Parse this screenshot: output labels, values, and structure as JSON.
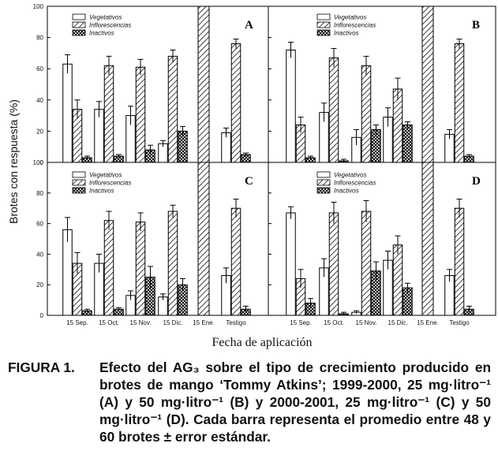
{
  "figure": {
    "ylabel": "Brotes con respuesta (%)",
    "xlabel": "Fecha de aplicación",
    "caption_label": "FIGURA 1.",
    "caption_text": "Efecto del AG₃ sobre el tipo de crecimiento producido en brotes de mango ‘Tommy Atkins’; 1999-2000, 25 mg·litro⁻¹ (A) y 50 mg·litro⁻¹ (B) y 2000-2001, 25 mg·litro⁻¹ (C) y 50 mg·litro⁻¹ (D). Cada barra representa el promedio entre 48 y 60 brotes ± error estándar."
  },
  "chart_data": [
    {
      "type": "bar",
      "panel": "A",
      "categories": [
        "15 Sep.",
        "15 Oct.",
        "15 Nov.",
        "15 Dic.",
        "15 Ene.",
        "Testigo"
      ],
      "ylim": [
        0,
        100
      ],
      "yticks": [
        0,
        20,
        40,
        60,
        80,
        100
      ],
      "legend": "top-left",
      "series": [
        {
          "name": "Vegetativos",
          "values": [
            63,
            34,
            30,
            12,
            null,
            19
          ],
          "errors": [
            6,
            5,
            6,
            2,
            null,
            3
          ]
        },
        {
          "name": "Inflorescencias",
          "values": [
            34,
            62,
            61,
            68,
            null,
            76
          ],
          "errors": [
            6,
            6,
            5,
            4,
            null,
            3
          ]
        },
        {
          "name": "Inactivos",
          "values": [
            3,
            4,
            8,
            20,
            null,
            5
          ],
          "errors": [
            1,
            1,
            3,
            3,
            null,
            1
          ]
        }
      ],
      "hatched_band": {
        "category": "15 Ene.",
        "value": 100
      }
    },
    {
      "type": "bar",
      "panel": "B",
      "categories": [
        "15 Sep.",
        "15 Oct.",
        "15 Nov.",
        "15 Dic.",
        "15 Ene.",
        "Testigo"
      ],
      "ylim": [
        0,
        100
      ],
      "yticks": [
        0,
        20,
        40,
        60,
        80,
        100
      ],
      "legend": "top-left",
      "series": [
        {
          "name": "Vegetativos",
          "values": [
            72,
            32,
            16,
            29,
            null,
            18
          ],
          "errors": [
            5,
            6,
            5,
            6,
            null,
            3
          ]
        },
        {
          "name": "Inflorescencias",
          "values": [
            24,
            67,
            62,
            47,
            null,
            76
          ],
          "errors": [
            5,
            6,
            6,
            7,
            null,
            3
          ]
        },
        {
          "name": "Inactivos",
          "values": [
            3,
            1,
            21,
            24,
            null,
            4
          ],
          "errors": [
            1,
            1,
            3,
            2,
            null,
            1
          ]
        }
      ],
      "hatched_band": {
        "category": "15 Ene.",
        "value": 100
      }
    },
    {
      "type": "bar",
      "panel": "C",
      "categories": [
        "15 Sep.",
        "15 Oct.",
        "15 Nov.",
        "15 Dic.",
        "15 Ene.",
        "Testigo"
      ],
      "ylim": [
        0,
        100
      ],
      "yticks": [
        0,
        20,
        40,
        60,
        80,
        100
      ],
      "legend": "top-left",
      "series": [
        {
          "name": "Vegetativos",
          "values": [
            56,
            34,
            13,
            12,
            null,
            26
          ],
          "errors": [
            8,
            6,
            3,
            2,
            null,
            5
          ]
        },
        {
          "name": "Inflorescencias",
          "values": [
            34,
            62,
            61,
            68,
            null,
            70
          ],
          "errors": [
            7,
            6,
            6,
            4,
            null,
            6
          ]
        },
        {
          "name": "Inactivos",
          "values": [
            3,
            4,
            25,
            20,
            null,
            4
          ],
          "errors": [
            1,
            1,
            7,
            4,
            null,
            2
          ]
        }
      ],
      "hatched_band": {
        "category": "15 Ene.",
        "value": 100
      }
    },
    {
      "type": "bar",
      "panel": "D",
      "categories": [
        "15 Sep.",
        "15 Oct.",
        "15 Nov.",
        "15 Dic.",
        "15 Ene.",
        "Testigo"
      ],
      "ylim": [
        0,
        100
      ],
      "yticks": [
        0,
        20,
        40,
        60,
        80,
        100
      ],
      "legend": "top-left",
      "series": [
        {
          "name": "Vegetativos",
          "values": [
            67,
            31,
            2,
            36,
            null,
            26
          ],
          "errors": [
            4,
            6,
            1,
            6,
            null,
            4
          ]
        },
        {
          "name": "Inflorescencias",
          "values": [
            24,
            67,
            68,
            46,
            null,
            70
          ],
          "errors": [
            6,
            7,
            7,
            6,
            null,
            6
          ]
        },
        {
          "name": "Inactivos",
          "values": [
            8,
            1,
            29,
            18,
            null,
            4
          ],
          "errors": [
            3,
            1,
            6,
            3,
            null,
            2
          ]
        }
      ],
      "hatched_band": {
        "category": "15 Ene.",
        "value": 100
      }
    }
  ]
}
